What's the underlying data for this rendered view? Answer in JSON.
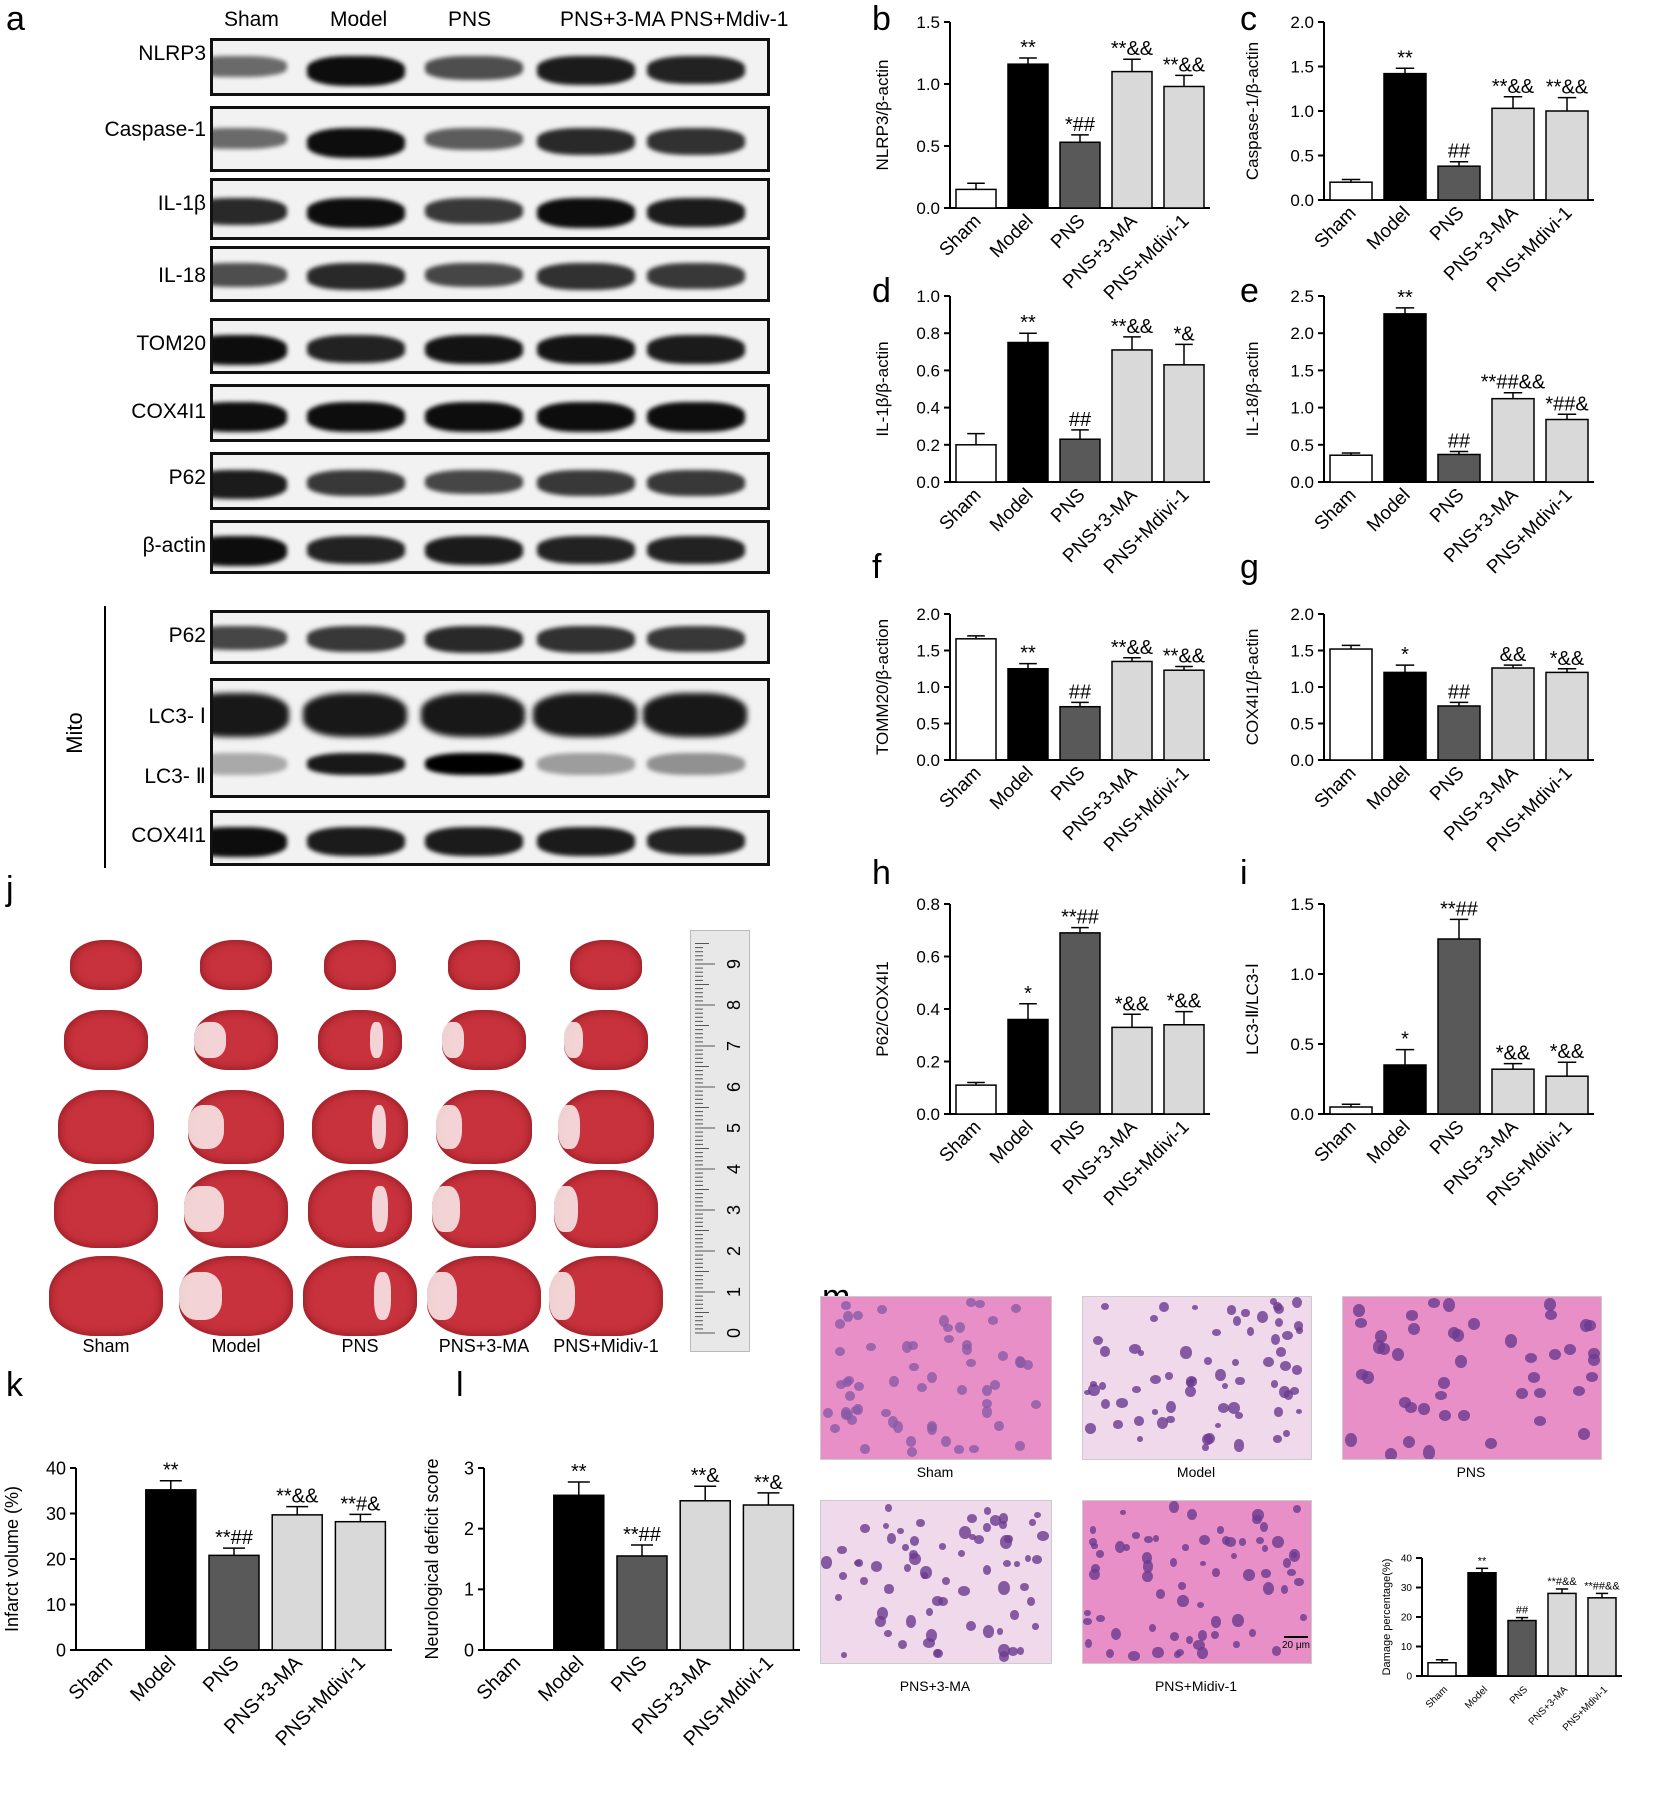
{
  "panels": {
    "a": "a",
    "b": "b",
    "c": "c",
    "d": "d",
    "e": "e",
    "f": "f",
    "g": "g",
    "h": "h",
    "i": "i",
    "j": "j",
    "k": "k",
    "l": "l",
    "m": "m"
  },
  "groups": [
    "Sham",
    "Model",
    "PNS",
    "PNS+3-MA",
    "PNS+Mdiv-1"
  ],
  "blot_rows": [
    "NLRP3",
    "Caspase-1",
    "IL-1β",
    "IL-18",
    "TOM20",
    "COX4I1",
    "P62",
    "β-actin"
  ],
  "mito": {
    "label": "Mito",
    "rows": [
      "P62",
      "LC3- Ⅰ",
      "LC3- Ⅱ",
      "COX4I1"
    ]
  },
  "ttc": {
    "groups": [
      "Sham",
      "Model",
      "PNS",
      "PNS+3-MA",
      "PNS+Midiv-1"
    ],
    "ruler_ticks": [
      "0",
      "1",
      "2",
      "3",
      "4",
      "5",
      "6",
      "7",
      "8",
      "9"
    ]
  },
  "he": {
    "captions": [
      "Sham",
      "Model",
      "PNS",
      "PNS+3-MA",
      "PNS+Midiv-1"
    ],
    "scale_bar": "20 μm"
  },
  "colors": {
    "sham": "#ffffff",
    "model": "#000000",
    "pns": "#595959",
    "ma": "#d9d9d9",
    "mdivi": "#d9d9d9",
    "blot_bg": "#f2f2f2",
    "ttc_red": "#c8323c",
    "he_pink": "#e98fc7"
  },
  "chart_data": [
    {
      "id": "b",
      "type": "bar",
      "categories": [
        "Sham",
        "Model",
        "PNS",
        "PNS+3-MA",
        "PNS+Mdivi-1"
      ],
      "values": [
        0.15,
        1.16,
        0.53,
        1.1,
        0.98
      ],
      "errors": [
        0.05,
        0.05,
        0.06,
        0.1,
        0.09
      ],
      "annotations": [
        "",
        "**",
        "*##",
        "**&&",
        "**&&"
      ],
      "ylabel": "NLRP3/β-actin",
      "ylim": [
        0,
        1.5
      ],
      "yticks": [
        "0.0",
        "0.5",
        "1.0",
        "1.5"
      ]
    },
    {
      "id": "c",
      "type": "bar",
      "categories": [
        "Sham",
        "Model",
        "PNS",
        "PNS+3-MA",
        "PNS+Mdivi-1"
      ],
      "values": [
        0.2,
        1.42,
        0.38,
        1.03,
        1.0
      ],
      "errors": [
        0.03,
        0.06,
        0.05,
        0.13,
        0.15
      ],
      "annotations": [
        "",
        "**",
        "##",
        "**&&",
        "**&&"
      ],
      "ylabel": "Caspase-1/β-actin",
      "ylim": [
        0,
        2.0
      ],
      "yticks": [
        "0.0",
        "0.5",
        "1.0",
        "1.5",
        "2.0"
      ]
    },
    {
      "id": "d",
      "type": "bar",
      "categories": [
        "Sham",
        "Model",
        "PNS",
        "PNS+3-MA",
        "PNS+Mdivi-1"
      ],
      "values": [
        0.2,
        0.75,
        0.23,
        0.71,
        0.63
      ],
      "errors": [
        0.06,
        0.05,
        0.05,
        0.07,
        0.11
      ],
      "annotations": [
        "",
        "**",
        "##",
        "**&&",
        "*&"
      ],
      "ylabel": "IL-1β/β-actin",
      "ylim": [
        0,
        1.0
      ],
      "yticks": [
        "0.0",
        "0.2",
        "0.4",
        "0.6",
        "0.8",
        "1.0"
      ]
    },
    {
      "id": "e",
      "type": "bar",
      "categories": [
        "Sham",
        "Model",
        "PNS",
        "PNS+3-MA",
        "PNS+Mdivi-1"
      ],
      "values": [
        0.36,
        2.26,
        0.37,
        1.12,
        0.84
      ],
      "errors": [
        0.03,
        0.08,
        0.04,
        0.08,
        0.07
      ],
      "annotations": [
        "",
        "**",
        "##",
        "**##&&",
        "*##&"
      ],
      "ylabel": "IL-18/β-actin",
      "ylim": [
        0,
        2.5
      ],
      "yticks": [
        "0.0",
        "0.5",
        "1.0",
        "1.5",
        "2.0",
        "2.5"
      ]
    },
    {
      "id": "f",
      "type": "bar",
      "categories": [
        "Sham",
        "Model",
        "PNS",
        "PNS+3-MA",
        "PNS+Mdivi-1"
      ],
      "values": [
        1.66,
        1.25,
        0.73,
        1.35,
        1.23
      ],
      "errors": [
        0.04,
        0.07,
        0.06,
        0.05,
        0.05
      ],
      "annotations": [
        "",
        "**",
        "##",
        "**&&",
        "**&&"
      ],
      "ylabel": "TOMM20/β-action",
      "ylim": [
        0,
        2.0
      ],
      "yticks": [
        "0.0",
        "0.5",
        "1.0",
        "1.5",
        "2.0"
      ]
    },
    {
      "id": "g",
      "type": "bar",
      "categories": [
        "Sham",
        "Model",
        "PNS",
        "PNS+3-MA",
        "PNS+Mdivi-1"
      ],
      "values": [
        1.52,
        1.2,
        0.74,
        1.26,
        1.2
      ],
      "errors": [
        0.05,
        0.1,
        0.05,
        0.04,
        0.05
      ],
      "annotations": [
        "",
        "*",
        "##",
        "&&",
        "*&&"
      ],
      "ylabel": "COX4I1/β-actin",
      "ylim": [
        0,
        2.0
      ],
      "yticks": [
        "0.0",
        "0.5",
        "1.0",
        "1.5",
        "2.0"
      ]
    },
    {
      "id": "h",
      "type": "bar",
      "categories": [
        "Sham",
        "Model",
        "PNS",
        "PNS+3-MA",
        "PNS+Mdivi-1"
      ],
      "values": [
        0.11,
        0.36,
        0.69,
        0.33,
        0.34
      ],
      "errors": [
        0.01,
        0.06,
        0.02,
        0.05,
        0.05
      ],
      "annotations": [
        "",
        "*",
        "**##",
        "*&&",
        "*&&"
      ],
      "ylabel": "P62/COX4I1",
      "ylim": [
        0,
        0.8
      ],
      "yticks": [
        "0.0",
        "0.2",
        "0.4",
        "0.6",
        "0.8"
      ]
    },
    {
      "id": "i",
      "type": "bar",
      "categories": [
        "Sham",
        "Model",
        "PNS",
        "PNS+3-MA",
        "PNS+Mdivi-1"
      ],
      "values": [
        0.05,
        0.35,
        1.25,
        0.32,
        0.27
      ],
      "errors": [
        0.02,
        0.11,
        0.14,
        0.04,
        0.1
      ],
      "annotations": [
        "",
        "*",
        "**##",
        "*&&",
        "*&&"
      ],
      "ylabel": "LC3-Ⅱ/LC3-Ⅰ",
      "ylim": [
        0,
        1.5
      ],
      "yticks": [
        "0.0",
        "0.5",
        "1.0",
        "1.5"
      ]
    },
    {
      "id": "k",
      "type": "bar",
      "categories": [
        "Sham",
        "Model",
        "PNS",
        "PNS+3-MA",
        "PNS+Mdivi-1"
      ],
      "values": [
        0,
        35.2,
        20.8,
        29.7,
        28.2
      ],
      "errors": [
        0,
        2.0,
        1.6,
        1.8,
        1.6
      ],
      "annotations": [
        "",
        "**",
        "**##",
        "**&&",
        "**#&"
      ],
      "ylabel": "Infarct volume (%)",
      "ylim": [
        0,
        40
      ],
      "yticks": [
        "0",
        "10",
        "20",
        "30",
        "40"
      ]
    },
    {
      "id": "l",
      "type": "bar",
      "categories": [
        "Sham",
        "Model",
        "PNS",
        "PNS+3-MA",
        "PNS+Mdivi-1"
      ],
      "values": [
        0,
        2.55,
        1.55,
        2.46,
        2.39
      ],
      "errors": [
        0,
        0.22,
        0.18,
        0.24,
        0.2
      ],
      "annotations": [
        "",
        "**",
        "**##",
        "**&",
        "**&"
      ],
      "ylabel": "Neurological deficit score",
      "ylim": [
        0,
        3
      ],
      "yticks": [
        "0",
        "1",
        "2",
        "3"
      ]
    },
    {
      "id": "m",
      "type": "bar",
      "categories": [
        "Sham",
        "Model",
        "PNS",
        "PNS+3-MA",
        "PNS+Mdivi-1"
      ],
      "values": [
        4.5,
        35,
        18.8,
        28,
        26.5
      ],
      "errors": [
        1,
        1.5,
        1,
        1.5,
        1.5
      ],
      "annotations": [
        "",
        "**",
        "##",
        "**#&&",
        "**##&&"
      ],
      "ylabel": "Damage percentage(%)",
      "ylim": [
        0,
        40
      ],
      "yticks": [
        "0",
        "10",
        "20",
        "30",
        "40"
      ]
    }
  ]
}
